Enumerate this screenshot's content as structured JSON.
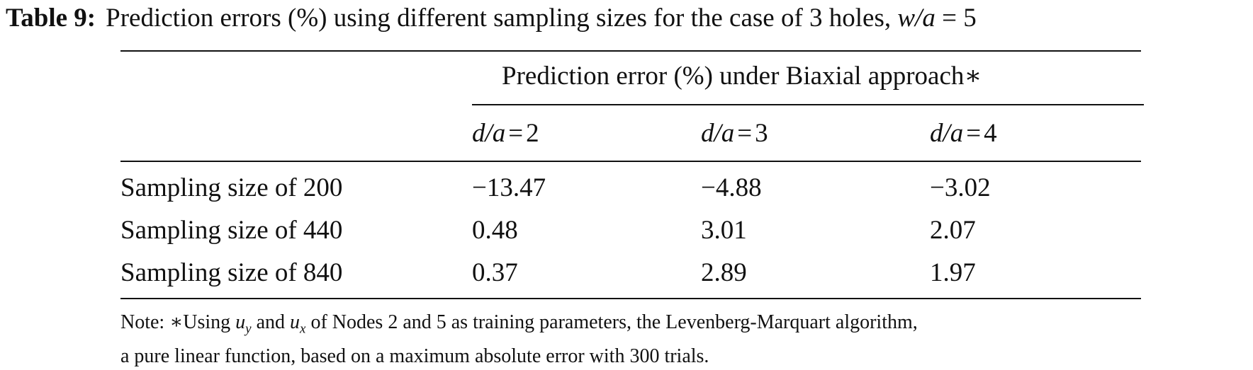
{
  "caption": {
    "label": "Table 9:",
    "text": "Prediction errors (%) using different sampling sizes for the case of 3 holes,",
    "param": "w/a",
    "eq": "= 5"
  },
  "table": {
    "group_header": "Prediction error (%) under Biaxial approach∗",
    "columns": [
      {
        "var": "d/a",
        "op": "=",
        "value": "2"
      },
      {
        "var": "d/a",
        "op": "=",
        "value": "3"
      },
      {
        "var": "d/a",
        "op": "=",
        "value": "4"
      }
    ],
    "rows": [
      {
        "label": "Sampling size of 200",
        "values": [
          "−13.47",
          "−4.88",
          "−3.02"
        ]
      },
      {
        "label": "Sampling size of 440",
        "values": [
          "0.48",
          "3.01",
          "2.07"
        ]
      },
      {
        "label": "Sampling size of 840",
        "values": [
          "0.37",
          "2.89",
          "1.97"
        ]
      }
    ]
  },
  "note": {
    "prefix": "Note: ∗Using",
    "var1": "u",
    "sub1": "y",
    "and": "and",
    "var2": "u",
    "sub2": "x",
    "line1_rest": "of Nodes 2 and 5 as training parameters, the Levenberg-Marquart algorithm,",
    "line2": "a pure linear function, based on a maximum absolute error with 300 trials."
  }
}
